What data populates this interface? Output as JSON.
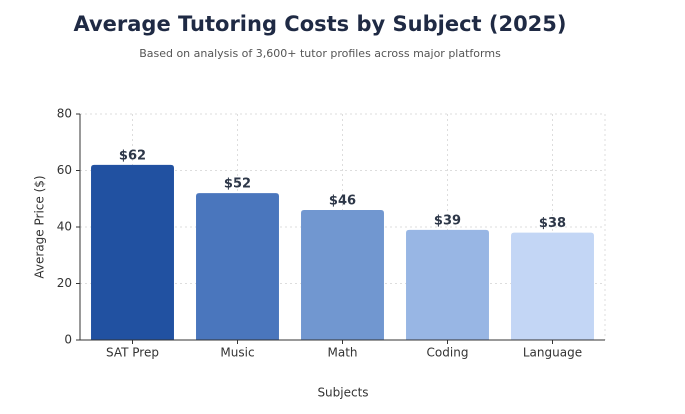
{
  "chart_data": {
    "type": "bar",
    "title": "Average Tutoring Costs by Subject (2025)",
    "subtitle": "Based on analysis of 3,600+ tutor profiles across major platforms",
    "x_label": "Subjects",
    "y_label": "Average Price ($)",
    "categories": [
      "SAT Prep",
      "Music",
      "Math",
      "Coding",
      "Language"
    ],
    "values": [
      62,
      52,
      46,
      39,
      38
    ],
    "value_labels": [
      "$62",
      "$52",
      "$46",
      "$39",
      "$38"
    ],
    "colors": [
      "#2151a1",
      "#4a76bd",
      "#7197d0",
      "#98b6e4",
      "#c3d6f5"
    ],
    "ylim": [
      0,
      80
    ],
    "yticks": [
      0,
      20,
      40,
      60,
      80
    ],
    "grid": true
  }
}
